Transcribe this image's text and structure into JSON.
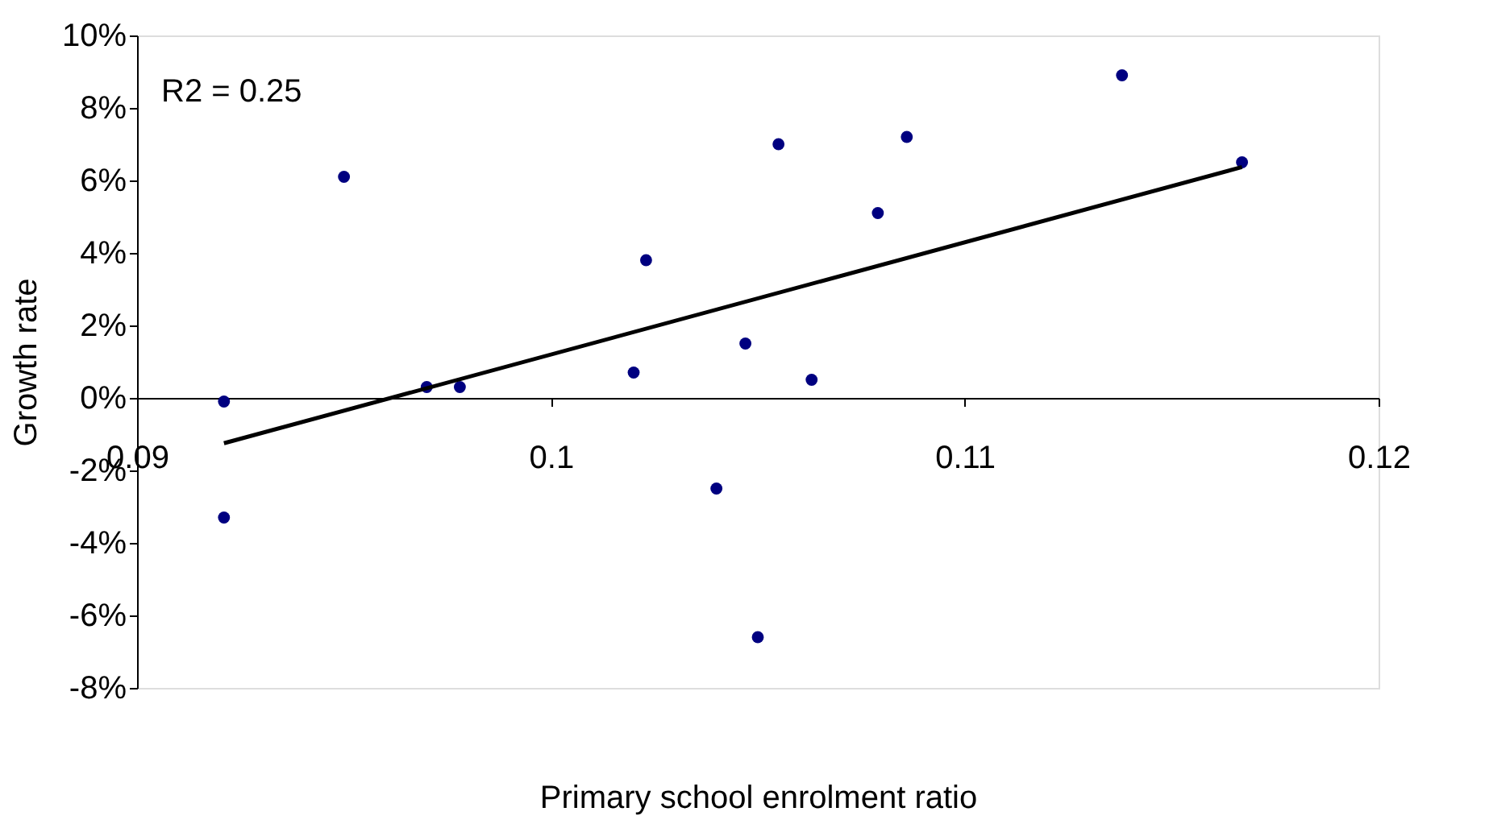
{
  "chart_data": {
    "type": "scatter",
    "xlabel": "Primary school enrolment ratio",
    "ylabel": "Growth rate",
    "annotations": [
      "R2 = 0.25"
    ],
    "xlim": [
      0.09,
      0.12
    ],
    "xticks": [
      0.09,
      0.1,
      0.11,
      0.12
    ],
    "ylim": [
      -8,
      10
    ],
    "yticks": [
      {
        "value": -8,
        "label": "-8%"
      },
      {
        "value": -6,
        "label": "-6%"
      },
      {
        "value": -4,
        "label": "-4%"
      },
      {
        "value": -2,
        "label": "-2%"
      },
      {
        "value": 0,
        "label": "0%"
      },
      {
        "value": 2,
        "label": "2%"
      },
      {
        "value": 4,
        "label": "4%"
      },
      {
        "value": 6,
        "label": "6%"
      },
      {
        "value": 8,
        "label": "8%"
      },
      {
        "value": 10,
        "label": "10%"
      }
    ],
    "grid": false,
    "series": [
      {
        "type": "scatter",
        "marker": "circle",
        "color": "#000080",
        "x": [
          0.0921,
          0.0921,
          0.095,
          0.097,
          0.0978,
          0.102,
          0.1023,
          0.1055,
          0.1086,
          0.1138,
          0.1167,
          0.1079,
          0.1047,
          0.1063,
          0.104,
          0.105
        ],
        "values": [
          -0.1,
          -3.3,
          6.1,
          0.3,
          0.3,
          0.7,
          3.8,
          7.0,
          7.2,
          8.9,
          6.5,
          5.1,
          1.5,
          0.5,
          -2.5,
          -6.6
        ]
      },
      {
        "type": "line",
        "color": "#000000",
        "line_style": "solid",
        "x": [
          0.0921,
          0.1167
        ],
        "values": [
          -1.25,
          6.37
        ]
      }
    ]
  }
}
